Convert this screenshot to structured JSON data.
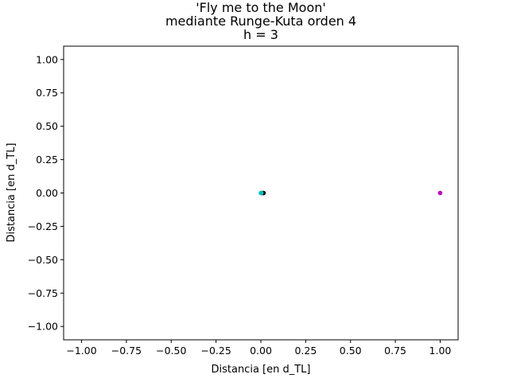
{
  "chart_data": {
    "type": "scatter",
    "title_lines": [
      "'Fly me to the Moon'",
      "mediante Runge-Kuta orden 4",
      "h = 3"
    ],
    "xlabel": "Distancia [en d_TL]",
    "ylabel": "Distancia [en d_TL]",
    "xlim": [
      -1.1,
      1.1
    ],
    "ylim": [
      -1.1,
      1.1
    ],
    "x_ticks": [
      -1.0,
      -0.75,
      -0.5,
      -0.25,
      0.0,
      0.25,
      0.5,
      0.75,
      1.0
    ],
    "y_ticks": [
      -1.0,
      -0.75,
      -0.5,
      -0.25,
      0.0,
      0.25,
      0.5,
      0.75,
      1.0
    ],
    "x_tick_labels": [
      "−1.00",
      "−0.75",
      "−0.50",
      "−0.25",
      "0.00",
      "0.25",
      "0.50",
      "0.75",
      "1.00"
    ],
    "y_tick_labels": [
      "−1.00",
      "−0.75",
      "−0.50",
      "−0.25",
      "0.00",
      "0.25",
      "0.50",
      "0.75",
      "1.00"
    ],
    "grid": false,
    "series": [
      {
        "color": "#000000",
        "points": [
          [
            0.005,
            0.0
          ],
          [
            0.01,
            0.0
          ],
          [
            0.015,
            0.0
          ]
        ]
      },
      {
        "color": "#bf00bf",
        "points": [
          [
            1.0,
            0.0
          ]
        ]
      },
      {
        "color": "#00bfbf",
        "points": [
          [
            0.0,
            0.0
          ],
          [
            0.003,
            0.0
          ]
        ]
      }
    ]
  }
}
